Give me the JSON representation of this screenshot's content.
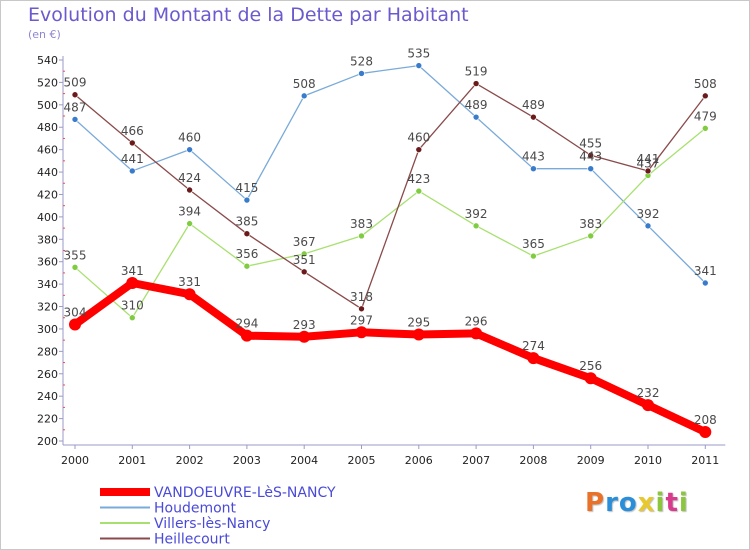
{
  "header": {
    "title": "Evolution du Montant de la Dette par Habitant",
    "subtitle": "(en €)"
  },
  "logo": {
    "text": "Proxiti",
    "letter_colors": [
      "#e8722a",
      "#2a8fd8",
      "#2a8fd8",
      "#e8c82a",
      "#8cc63f",
      "#d83a8c",
      "#8cc63f"
    ]
  },
  "chart_data": {
    "type": "line",
    "title": "Evolution du Montant de la Dette par Habitant",
    "subtitle": "(en €)",
    "xlabel": "",
    "ylabel": "",
    "x": [
      "2000",
      "2001",
      "2002",
      "2003",
      "2004",
      "2005",
      "2006",
      "2007",
      "2008",
      "2009",
      "2010",
      "2011"
    ],
    "ylim": [
      200,
      540
    ],
    "yticks": [
      200,
      220,
      240,
      260,
      280,
      300,
      320,
      340,
      360,
      380,
      400,
      420,
      440,
      460,
      480,
      500,
      520,
      540
    ],
    "grid": false,
    "legend_position": "bottom-left",
    "series": [
      {
        "name": "VANDOEUVRE-LèS-NANCY",
        "color": "#ff0000",
        "point_color": "#ff0000",
        "emphasis": true,
        "values": [
          304,
          341,
          331,
          294,
          293,
          297,
          295,
          296,
          274,
          256,
          232,
          208
        ]
      },
      {
        "name": "Houdemont",
        "color": "#7aaad8",
        "point_color": "#3a7ccc",
        "emphasis": false,
        "values": [
          487,
          441,
          460,
          415,
          508,
          528,
          535,
          489,
          443,
          443,
          392,
          341
        ]
      },
      {
        "name": "Villers-lès-Nancy",
        "color": "#a8e070",
        "point_color": "#80cc40",
        "emphasis": false,
        "values": [
          355,
          310,
          394,
          356,
          367,
          383,
          423,
          392,
          365,
          383,
          437,
          479
        ]
      },
      {
        "name": "Heillecourt",
        "color": "#8a4a4a",
        "point_color": "#6a1a1a",
        "emphasis": false,
        "values": [
          509,
          466,
          424,
          385,
          351,
          318,
          460,
          519,
          489,
          455,
          441,
          508
        ]
      }
    ]
  }
}
